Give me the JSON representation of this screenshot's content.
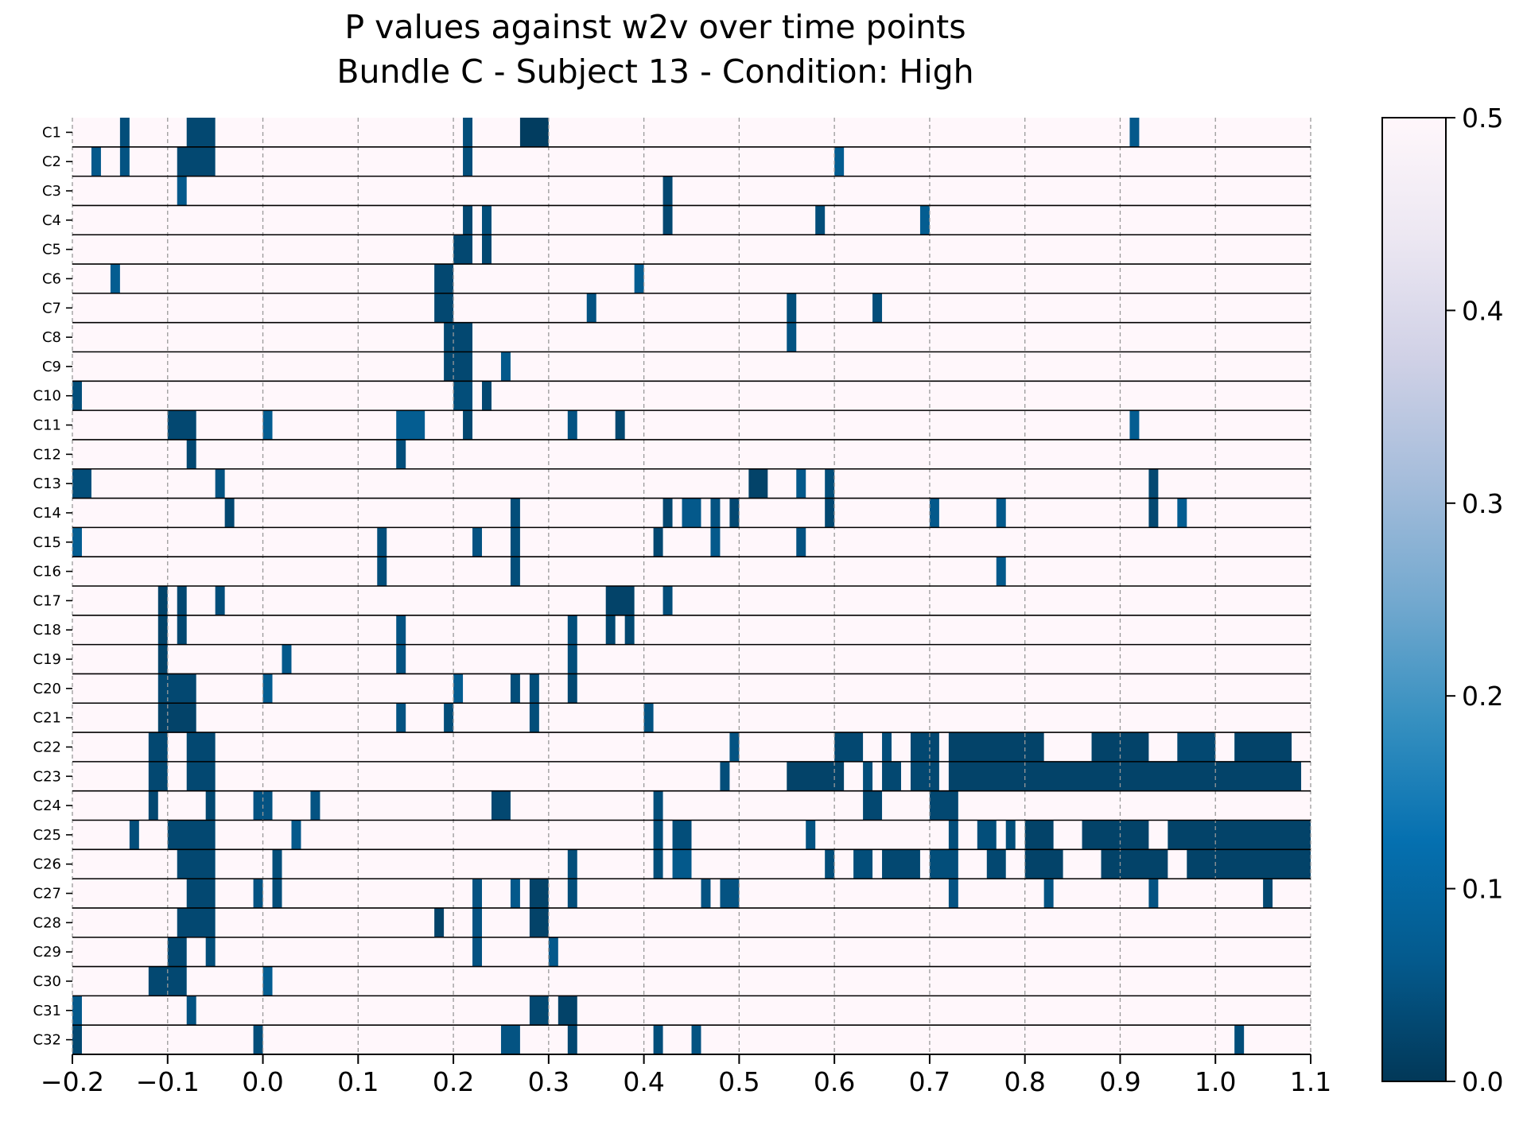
{
  "chart_data": {
    "type": "heatmap",
    "title": [
      "P values against w2v over time points",
      "Bundle C - Subject 13 - Condition: High"
    ],
    "xlabel": "",
    "ylabel": "",
    "xlim": [
      -0.2,
      1.1
    ],
    "x_ticks": [
      "−0.2",
      "−0.1",
      "0.0",
      "0.1",
      "0.2",
      "0.3",
      "0.4",
      "0.5",
      "0.6",
      "0.7",
      "0.8",
      "0.9",
      "1.0",
      "1.1"
    ],
    "x_tick_values": [
      -0.2,
      -0.1,
      0.0,
      0.1,
      0.2,
      0.3,
      0.4,
      0.5,
      0.6,
      0.7,
      0.8,
      0.9,
      1.0,
      1.1
    ],
    "grid": "vertical dashed at x ticks",
    "colorbar": {
      "range": [
        0.0,
        0.5
      ],
      "ticks": [
        "0.0",
        "0.1",
        "0.2",
        "0.3",
        "0.4",
        "0.5"
      ],
      "tick_values": [
        0.0,
        0.1,
        0.2,
        0.3,
        0.4,
        0.5
      ],
      "colormap": "PuBu_r",
      "colors": [
        "#023858",
        "#045a8d",
        "#0570b0",
        "#3690c0",
        "#74a9cf",
        "#a6bddb",
        "#d0d1e6",
        "#ece7f2",
        "#fff7fb"
      ]
    },
    "background_value": 0.5,
    "rows": [
      "C1",
      "C2",
      "C3",
      "C4",
      "C5",
      "C6",
      "C7",
      "C8",
      "C9",
      "C10",
      "C11",
      "C12",
      "C13",
      "C14",
      "C15",
      "C16",
      "C17",
      "C18",
      "C19",
      "C20",
      "C21",
      "C22",
      "C23",
      "C24",
      "C25",
      "C26",
      "C27",
      "C28",
      "C29",
      "C30",
      "C31",
      "C32"
    ],
    "segments": [
      [
        [
          -0.15,
          -0.14,
          0.04
        ],
        [
          -0.08,
          -0.05,
          0.03
        ],
        [
          0.21,
          0.22,
          0.04
        ],
        [
          0.27,
          0.3,
          0.01
        ],
        [
          0.91,
          0.92,
          0.06
        ]
      ],
      [
        [
          -0.18,
          -0.17,
          0.06
        ],
        [
          -0.15,
          -0.14,
          0.05
        ],
        [
          -0.09,
          -0.05,
          0.03
        ],
        [
          0.21,
          0.22,
          0.04
        ],
        [
          0.6,
          0.61,
          0.07
        ]
      ],
      [
        [
          -0.09,
          -0.08,
          0.06
        ],
        [
          0.42,
          0.43,
          0.03
        ]
      ],
      [
        [
          0.21,
          0.22,
          0.03
        ],
        [
          0.23,
          0.24,
          0.04
        ],
        [
          0.42,
          0.43,
          0.03
        ],
        [
          0.58,
          0.59,
          0.04
        ],
        [
          0.69,
          0.7,
          0.07
        ]
      ],
      [
        [
          0.2,
          0.22,
          0.03
        ],
        [
          0.23,
          0.24,
          0.03
        ]
      ],
      [
        [
          -0.16,
          -0.15,
          0.07
        ],
        [
          0.18,
          0.2,
          0.03
        ],
        [
          0.39,
          0.4,
          0.07
        ]
      ],
      [
        [
          0.18,
          0.2,
          0.03
        ],
        [
          0.34,
          0.35,
          0.05
        ],
        [
          0.55,
          0.56,
          0.04
        ],
        [
          0.64,
          0.65,
          0.04
        ]
      ],
      [
        [
          0.19,
          0.22,
          0.03
        ],
        [
          0.55,
          0.56,
          0.05
        ]
      ],
      [
        [
          0.19,
          0.22,
          0.03
        ],
        [
          0.25,
          0.26,
          0.06
        ]
      ],
      [
        [
          -0.2,
          -0.19,
          0.04
        ],
        [
          0.2,
          0.22,
          0.04
        ],
        [
          0.23,
          0.24,
          0.03
        ]
      ],
      [
        [
          -0.1,
          -0.07,
          0.03
        ],
        [
          0.0,
          0.01,
          0.07
        ],
        [
          0.14,
          0.17,
          0.07
        ],
        [
          0.21,
          0.22,
          0.03
        ],
        [
          0.32,
          0.33,
          0.05
        ],
        [
          0.37,
          0.38,
          0.03
        ],
        [
          0.91,
          0.92,
          0.07
        ]
      ],
      [
        [
          -0.08,
          -0.07,
          0.03
        ],
        [
          0.14,
          0.15,
          0.04
        ]
      ],
      [
        [
          -0.2,
          -0.18,
          0.04
        ],
        [
          -0.05,
          -0.04,
          0.05
        ],
        [
          0.51,
          0.53,
          0.02
        ],
        [
          0.56,
          0.57,
          0.06
        ],
        [
          0.59,
          0.6,
          0.04
        ],
        [
          0.93,
          0.94,
          0.03
        ]
      ],
      [
        [
          -0.04,
          -0.03,
          0.03
        ],
        [
          0.26,
          0.27,
          0.04
        ],
        [
          0.42,
          0.43,
          0.03
        ],
        [
          0.44,
          0.46,
          0.06
        ],
        [
          0.47,
          0.48,
          0.05
        ],
        [
          0.49,
          0.5,
          0.03
        ],
        [
          0.59,
          0.6,
          0.03
        ],
        [
          0.7,
          0.71,
          0.06
        ],
        [
          0.77,
          0.78,
          0.06
        ],
        [
          0.93,
          0.94,
          0.03
        ],
        [
          0.96,
          0.97,
          0.07
        ]
      ],
      [
        [
          -0.2,
          -0.19,
          0.07
        ],
        [
          0.12,
          0.13,
          0.04
        ],
        [
          0.22,
          0.23,
          0.05
        ],
        [
          0.26,
          0.27,
          0.04
        ],
        [
          0.41,
          0.42,
          0.03
        ],
        [
          0.47,
          0.48,
          0.06
        ],
        [
          0.56,
          0.57,
          0.05
        ]
      ],
      [
        [
          0.12,
          0.13,
          0.04
        ],
        [
          0.26,
          0.27,
          0.04
        ],
        [
          0.77,
          0.78,
          0.06
        ]
      ],
      [
        [
          -0.11,
          -0.1,
          0.02
        ],
        [
          -0.09,
          -0.08,
          0.03
        ],
        [
          -0.05,
          -0.04,
          0.04
        ],
        [
          0.36,
          0.39,
          0.02
        ],
        [
          0.42,
          0.43,
          0.04
        ]
      ],
      [
        [
          -0.11,
          -0.1,
          0.02
        ],
        [
          -0.09,
          -0.08,
          0.03
        ],
        [
          0.14,
          0.15,
          0.05
        ],
        [
          0.32,
          0.33,
          0.04
        ],
        [
          0.36,
          0.37,
          0.03
        ],
        [
          0.38,
          0.39,
          0.03
        ]
      ],
      [
        [
          -0.11,
          -0.1,
          0.02
        ],
        [
          0.02,
          0.03,
          0.06
        ],
        [
          0.14,
          0.15,
          0.05
        ],
        [
          0.32,
          0.33,
          0.04
        ]
      ],
      [
        [
          -0.11,
          -0.07,
          0.03
        ],
        [
          0.0,
          0.01,
          0.07
        ],
        [
          0.2,
          0.21,
          0.07
        ],
        [
          0.26,
          0.27,
          0.04
        ],
        [
          0.28,
          0.29,
          0.04
        ],
        [
          0.32,
          0.33,
          0.03
        ]
      ],
      [
        [
          -0.11,
          -0.07,
          0.02
        ],
        [
          0.14,
          0.15,
          0.05
        ],
        [
          0.19,
          0.2,
          0.04
        ],
        [
          0.28,
          0.29,
          0.04
        ],
        [
          0.4,
          0.41,
          0.05
        ]
      ],
      [
        [
          -0.12,
          -0.1,
          0.03
        ],
        [
          -0.08,
          -0.05,
          0.03
        ],
        [
          0.49,
          0.5,
          0.05
        ],
        [
          0.6,
          0.63,
          0.03
        ],
        [
          0.65,
          0.66,
          0.04
        ],
        [
          0.68,
          0.71,
          0.03
        ],
        [
          0.72,
          0.82,
          0.02
        ],
        [
          0.87,
          0.93,
          0.02
        ],
        [
          0.96,
          1.0,
          0.03
        ],
        [
          1.02,
          1.08,
          0.02
        ]
      ],
      [
        [
          -0.12,
          -0.1,
          0.03
        ],
        [
          -0.08,
          -0.05,
          0.03
        ],
        [
          0.48,
          0.49,
          0.04
        ],
        [
          0.55,
          0.61,
          0.02
        ],
        [
          0.63,
          0.64,
          0.04
        ],
        [
          0.65,
          0.67,
          0.03
        ],
        [
          0.68,
          0.71,
          0.03
        ],
        [
          0.72,
          1.09,
          0.02
        ]
      ],
      [
        [
          -0.12,
          -0.11,
          0.03
        ],
        [
          -0.06,
          -0.05,
          0.03
        ],
        [
          -0.01,
          0.01,
          0.05
        ],
        [
          0.05,
          0.06,
          0.05
        ],
        [
          0.24,
          0.26,
          0.03
        ],
        [
          0.41,
          0.42,
          0.04
        ],
        [
          0.63,
          0.65,
          0.03
        ],
        [
          0.7,
          0.73,
          0.03
        ]
      ],
      [
        [
          -0.14,
          -0.13,
          0.04
        ],
        [
          -0.1,
          -0.05,
          0.03
        ],
        [
          0.03,
          0.04,
          0.06
        ],
        [
          0.41,
          0.42,
          0.04
        ],
        [
          0.43,
          0.45,
          0.04
        ],
        [
          0.57,
          0.58,
          0.05
        ],
        [
          0.72,
          0.73,
          0.04
        ],
        [
          0.75,
          0.77,
          0.04
        ],
        [
          0.78,
          0.79,
          0.04
        ],
        [
          0.8,
          0.83,
          0.02
        ],
        [
          0.86,
          0.93,
          0.02
        ],
        [
          0.95,
          1.1,
          0.02
        ]
      ],
      [
        [
          -0.09,
          -0.05,
          0.03
        ],
        [
          0.01,
          0.02,
          0.04
        ],
        [
          0.32,
          0.33,
          0.04
        ],
        [
          0.41,
          0.42,
          0.04
        ],
        [
          0.43,
          0.45,
          0.06
        ],
        [
          0.59,
          0.6,
          0.04
        ],
        [
          0.62,
          0.64,
          0.04
        ],
        [
          0.65,
          0.69,
          0.03
        ],
        [
          0.7,
          0.73,
          0.04
        ],
        [
          0.76,
          0.78,
          0.03
        ],
        [
          0.8,
          0.84,
          0.02
        ],
        [
          0.88,
          0.95,
          0.02
        ],
        [
          0.97,
          1.1,
          0.02
        ]
      ],
      [
        [
          -0.08,
          -0.05,
          0.03
        ],
        [
          -0.01,
          0.0,
          0.05
        ],
        [
          0.01,
          0.02,
          0.04
        ],
        [
          0.22,
          0.23,
          0.05
        ],
        [
          0.26,
          0.27,
          0.06
        ],
        [
          0.28,
          0.3,
          0.02
        ],
        [
          0.32,
          0.33,
          0.04
        ],
        [
          0.46,
          0.47,
          0.05
        ],
        [
          0.48,
          0.5,
          0.05
        ],
        [
          0.72,
          0.73,
          0.05
        ],
        [
          0.82,
          0.83,
          0.05
        ],
        [
          0.93,
          0.94,
          0.05
        ],
        [
          1.05,
          1.06,
          0.03
        ]
      ],
      [
        [
          -0.09,
          -0.05,
          0.03
        ],
        [
          0.18,
          0.19,
          0.02
        ],
        [
          0.22,
          0.23,
          0.05
        ],
        [
          0.28,
          0.3,
          0.02
        ]
      ],
      [
        [
          -0.1,
          -0.08,
          0.03
        ],
        [
          -0.06,
          -0.05,
          0.04
        ],
        [
          0.22,
          0.23,
          0.05
        ],
        [
          0.3,
          0.31,
          0.06
        ]
      ],
      [
        [
          -0.12,
          -0.08,
          0.03
        ],
        [
          0.0,
          0.01,
          0.07
        ]
      ],
      [
        [
          -0.2,
          -0.19,
          0.06
        ],
        [
          -0.08,
          -0.07,
          0.05
        ],
        [
          0.28,
          0.3,
          0.03
        ],
        [
          0.31,
          0.33,
          0.02
        ]
      ],
      [
        [
          -0.2,
          -0.19,
          0.03
        ],
        [
          -0.01,
          0.0,
          0.04
        ],
        [
          0.25,
          0.27,
          0.05
        ],
        [
          0.32,
          0.33,
          0.03
        ],
        [
          0.41,
          0.42,
          0.04
        ],
        [
          0.45,
          0.46,
          0.05
        ],
        [
          1.02,
          1.03,
          0.04
        ]
      ]
    ]
  }
}
